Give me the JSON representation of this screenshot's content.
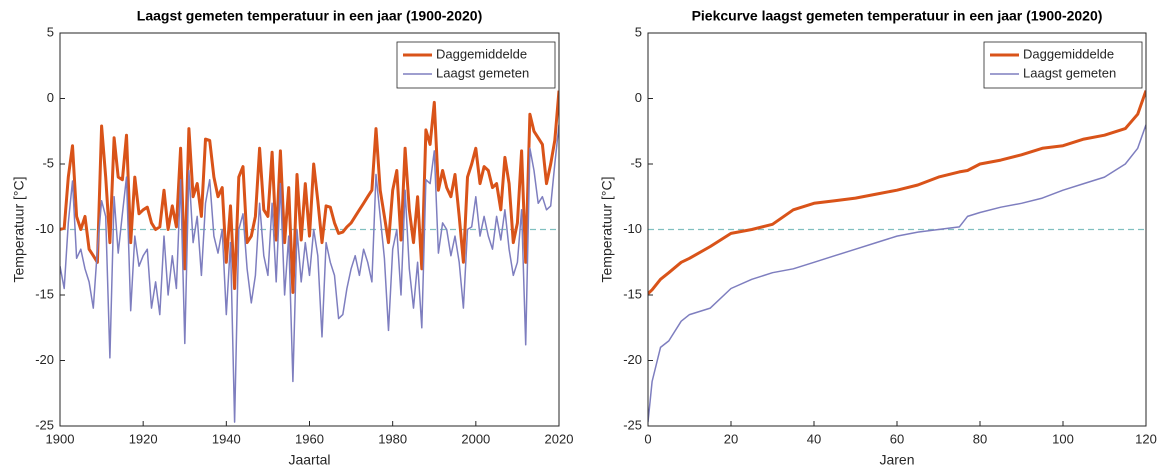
{
  "chart_data": [
    {
      "type": "line",
      "title": "Laagst gemeten temperatuur in een jaar (1900-2020)",
      "x_label": "Jaartal",
      "y_label": "Temperatuur [°C]",
      "x": [
        1900,
        1901,
        1902,
        1903,
        1904,
        1905,
        1906,
        1907,
        1908,
        1909,
        1910,
        1911,
        1912,
        1913,
        1914,
        1915,
        1916,
        1917,
        1918,
        1919,
        1920,
        1921,
        1922,
        1923,
        1924,
        1925,
        1926,
        1927,
        1928,
        1929,
        1930,
        1931,
        1932,
        1933,
        1934,
        1935,
        1936,
        1937,
        1938,
        1939,
        1940,
        1941,
        1942,
        1943,
        1944,
        1945,
        1946,
        1947,
        1948,
        1949,
        1950,
        1951,
        1952,
        1953,
        1954,
        1955,
        1956,
        1957,
        1958,
        1959,
        1960,
        1961,
        1962,
        1963,
        1964,
        1965,
        1966,
        1967,
        1968,
        1969,
        1970,
        1971,
        1972,
        1973,
        1974,
        1975,
        1976,
        1977,
        1978,
        1979,
        1980,
        1981,
        1982,
        1983,
        1984,
        1985,
        1986,
        1987,
        1988,
        1989,
        1990,
        1991,
        1992,
        1993,
        1994,
        1995,
        1996,
        1997,
        1998,
        1999,
        2000,
        2001,
        2002,
        2003,
        2004,
        2005,
        2006,
        2007,
        2008,
        2009,
        2010,
        2011,
        2012,
        2013,
        2014,
        2015,
        2016,
        2017,
        2018,
        2019,
        2020
      ],
      "series": [
        {
          "name": "Daggemiddelde",
          "color": "#d95319",
          "width": 3,
          "values": [
            -10,
            -9.9,
            -6,
            -3.6,
            -9,
            -10,
            -9,
            -11.5,
            -12,
            -12.5,
            -2.1,
            -6,
            -11,
            -3,
            -6,
            -6.2,
            -2.8,
            -11,
            -6,
            -8.8,
            -8.5,
            -8.3,
            -9.5,
            -10,
            -9.8,
            -7,
            -10,
            -8.2,
            -9.8,
            -3.8,
            -13,
            -2.3,
            -7.5,
            -6.5,
            -9,
            -3.1,
            -3.2,
            -6,
            -7.5,
            -6.8,
            -12.5,
            -8.2,
            -14.5,
            -6,
            -5.2,
            -11,
            -10.5,
            -9,
            -3.8,
            -8.5,
            -9,
            -4.1,
            -10.8,
            -4,
            -11,
            -6.8,
            -14.8,
            -5.8,
            -10.8,
            -6.5,
            -10.5,
            -5,
            -7.8,
            -11,
            -8.2,
            -8.3,
            -9.5,
            -10.3,
            -10.2,
            -9.8,
            -9.5,
            -9,
            -8.5,
            -8,
            -7.5,
            -7,
            -2.3,
            -7,
            -9,
            -11,
            -7,
            -5.5,
            -10.8,
            -3.8,
            -8.5,
            -11,
            -7.5,
            -13,
            -2.4,
            -3.5,
            -0.3,
            -7,
            -5.5,
            -6.8,
            -7.5,
            -5.8,
            -9,
            -12.5,
            -6,
            -5,
            -3.8,
            -6.5,
            -5.2,
            -5.5,
            -6.8,
            -6.5,
            -8.5,
            -4.5,
            -6.5,
            -11,
            -9.5,
            -4,
            -12.5,
            -1.2,
            -2.5,
            -3,
            -3.5,
            -6.5,
            -5,
            -3.2,
            0.6
          ]
        },
        {
          "name": "Laagst gemeten",
          "color": "#7e7ebf",
          "width": 1.5,
          "values": [
            -12.8,
            -14.5,
            -9.5,
            -6.3,
            -12.2,
            -11.5,
            -13,
            -14,
            -16,
            -11.5,
            -7.8,
            -9,
            -19.8,
            -7.5,
            -11.8,
            -8.8,
            -6,
            -16.2,
            -10.5,
            -12.8,
            -12,
            -11.5,
            -16,
            -14,
            -16.5,
            -10.5,
            -15,
            -12,
            -14.5,
            -6.2,
            -18.7,
            -5.5,
            -11,
            -9,
            -13.5,
            -8,
            -6.2,
            -10.5,
            -11.8,
            -10,
            -16.5,
            -11,
            -24.7,
            -10,
            -8.8,
            -13,
            -15.6,
            -13.5,
            -8,
            -12,
            -13.5,
            -8,
            -14,
            -6.5,
            -15,
            -10.5,
            -21.6,
            -10,
            -14,
            -11,
            -13.5,
            -10,
            -12,
            -18.2,
            -11,
            -12.5,
            -13.5,
            -16.8,
            -16.5,
            -14.5,
            -13,
            -12,
            -13.5,
            -11.5,
            -12.5,
            -14,
            -5.8,
            -9,
            -12.2,
            -17.7,
            -11.5,
            -10,
            -15,
            -7,
            -13,
            -16,
            -12.5,
            -17.5,
            -6.2,
            -6.5,
            -4,
            -11.8,
            -9.5,
            -10,
            -12,
            -10.5,
            -12.5,
            -16,
            -10,
            -9.8,
            -7.5,
            -10.5,
            -9,
            -10.5,
            -11.5,
            -9,
            -10.8,
            -8.5,
            -11.5,
            -13.5,
            -12.5,
            -8.5,
            -18.8,
            -3.8,
            -5.5,
            -8,
            -7.5,
            -8.5,
            -8.2,
            -5,
            -2
          ]
        }
      ],
      "hline": -10,
      "hline_color": "#80c0c0",
      "xlim": [
        1900,
        2020
      ],
      "xticks": [
        1900,
        1920,
        1940,
        1960,
        1980,
        2000,
        2020
      ],
      "ylim": [
        -25,
        5
      ],
      "yticks": [
        -25,
        -20,
        -15,
        -10,
        -5,
        0,
        5
      ],
      "legend": "top-right"
    },
    {
      "type": "line",
      "title": "Piekcurve laagst gemeten temperatuur in een jaar (1900-2020)",
      "x_label": "Jaren",
      "y_label": "Temperatuur [°C]",
      "x": [
        0,
        1,
        3,
        5,
        8,
        10,
        15,
        20,
        25,
        30,
        35,
        40,
        45,
        50,
        55,
        60,
        65,
        70,
        75,
        77,
        80,
        85,
        90,
        95,
        100,
        105,
        110,
        115,
        118,
        120
      ],
      "series": [
        {
          "name": "Daggemiddelde",
          "color": "#d95319",
          "width": 3,
          "values": [
            -14.9,
            -14.6,
            -13.8,
            -13.3,
            -12.5,
            -12.2,
            -11.3,
            -10.3,
            -10,
            -9.6,
            -8.5,
            -8,
            -7.8,
            -7.6,
            -7.3,
            -7,
            -6.6,
            -6,
            -5.6,
            -5.5,
            -5,
            -4.7,
            -4.3,
            -3.8,
            -3.6,
            -3.1,
            -2.8,
            -2.3,
            -1.2,
            0.6
          ]
        },
        {
          "name": "Laagst gemeten",
          "color": "#7e7ebf",
          "width": 1.5,
          "values": [
            -24.7,
            -21.6,
            -19,
            -18.5,
            -17,
            -16.5,
            -16,
            -14.5,
            -13.8,
            -13.3,
            -13,
            -12.5,
            -12,
            -11.5,
            -11,
            -10.5,
            -10.2,
            -10,
            -9.8,
            -9,
            -8.7,
            -8.3,
            -8,
            -7.6,
            -7,
            -6.5,
            -6,
            -5,
            -3.8,
            -2
          ]
        }
      ],
      "hline": -10,
      "hline_color": "#80c0c0",
      "xlim": [
        0,
        120
      ],
      "xticks": [
        0,
        20,
        40,
        60,
        80,
        100,
        120
      ],
      "ylim": [
        -25,
        5
      ],
      "yticks": [
        -25,
        -20,
        -15,
        -10,
        -5,
        0,
        5
      ],
      "legend": "top-right"
    }
  ]
}
